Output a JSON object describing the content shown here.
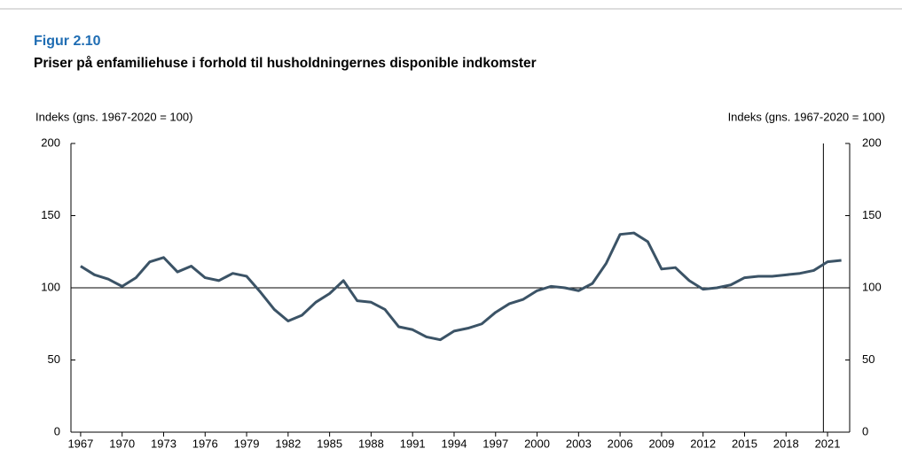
{
  "chart_data": {
    "type": "line",
    "title": "Figur 2.10",
    "subtitle": "Priser på enfamiliehuse i forhold til husholdningernes disponible indkomster",
    "y_label": "Indeks (gns. 1967-2020 = 100)",
    "y2_label": "Indeks (gns. 1967-2020 = 100)",
    "x": [
      1967,
      1968,
      1969,
      1970,
      1971,
      1972,
      1973,
      1974,
      1975,
      1976,
      1977,
      1978,
      1979,
      1980,
      1981,
      1982,
      1983,
      1984,
      1985,
      1986,
      1987,
      1988,
      1989,
      1990,
      1991,
      1992,
      1993,
      1994,
      1995,
      1996,
      1997,
      1998,
      1999,
      2000,
      2001,
      2002,
      2003,
      2004,
      2005,
      2006,
      2007,
      2008,
      2009,
      2010,
      2011,
      2012,
      2013,
      2014,
      2015,
      2016,
      2017,
      2018,
      2019,
      2020,
      2021,
      2022
    ],
    "series": [
      {
        "color": "#3b5366",
        "values": [
          115,
          109,
          106,
          101,
          107,
          118,
          121,
          111,
          115,
          107,
          105,
          110,
          108,
          97,
          85,
          77,
          81,
          90,
          96,
          105,
          91,
          90,
          85,
          73,
          71,
          66,
          64,
          70,
          72,
          75,
          83,
          89,
          92,
          98,
          101,
          100,
          98,
          103,
          117,
          137,
          138,
          132,
          113,
          114,
          105,
          99,
          100,
          102,
          107,
          108,
          108,
          109,
          110,
          112,
          118,
          119
        ]
      }
    ],
    "xlim": [
      1966.3,
      2022.6
    ],
    "xticks": [
      1967,
      1970,
      1973,
      1976,
      1979,
      1982,
      1985,
      1988,
      1991,
      1994,
      1997,
      2000,
      2003,
      2006,
      2009,
      2012,
      2015,
      2018,
      2021
    ],
    "ylim": [
      0,
      200
    ],
    "yticks": [
      0,
      50,
      100,
      150,
      200
    ],
    "y2lim": [
      0,
      200
    ],
    "y2ticks": [
      0,
      50,
      100,
      150,
      200
    ],
    "reference_line": 100,
    "forecast_line": 2020.7
  }
}
